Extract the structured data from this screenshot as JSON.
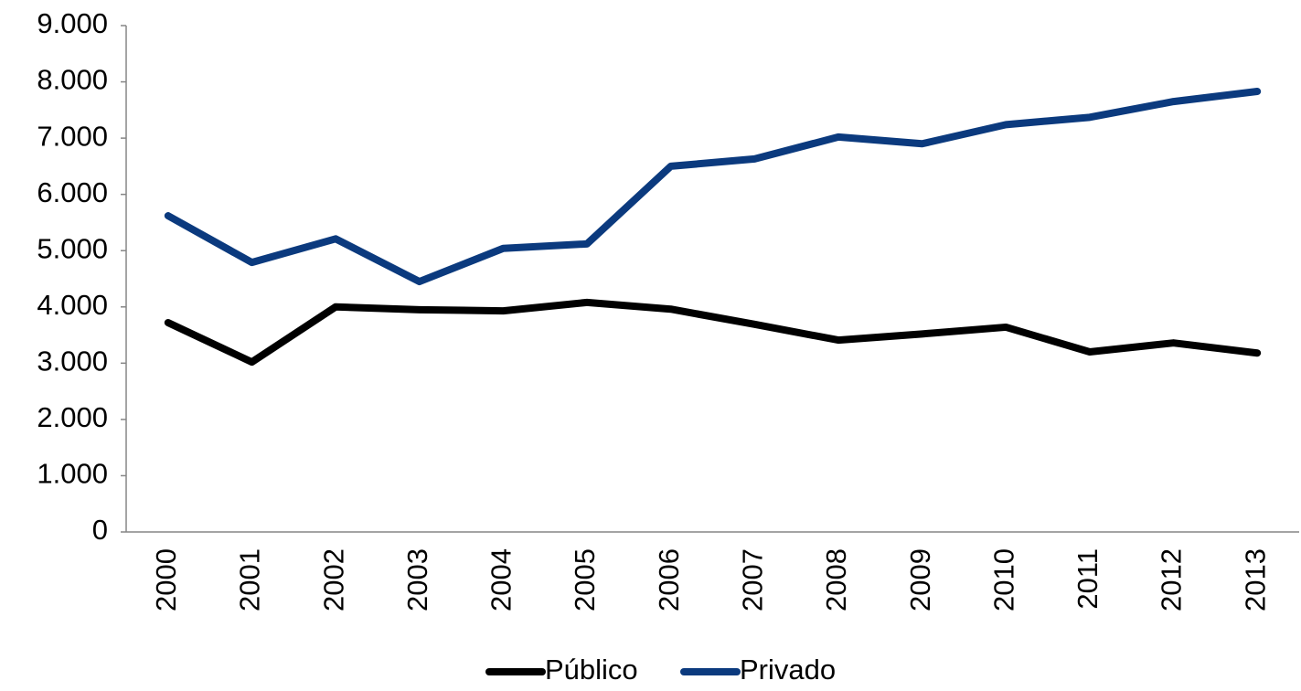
{
  "chart_data": {
    "type": "line",
    "categories": [
      "2000",
      "2001",
      "2002",
      "2003",
      "2004",
      "2005",
      "2006",
      "2007",
      "2008",
      "2009",
      "2010",
      "2011",
      "2012",
      "2013"
    ],
    "series": [
      {
        "name": "Público",
        "color": "#000000",
        "values": [
          3720,
          3020,
          4000,
          3950,
          3930,
          4080,
          3960,
          3690,
          3410,
          3520,
          3640,
          3200,
          3360,
          3180
        ]
      },
      {
        "name": "Privado",
        "color": "#0b3a7e",
        "values": [
          5620,
          4790,
          5210,
          4450,
          5040,
          5120,
          6500,
          6630,
          7020,
          6900,
          7240,
          7370,
          7650,
          7830
        ]
      }
    ],
    "ylim": [
      0,
      9000
    ],
    "yticks": [
      0,
      {
        "value": 1000,
        "label": "1.000"
      },
      {
        "value": 2000,
        "label": "2.000"
      },
      {
        "value": 3000,
        "label": "3.000"
      },
      {
        "value": 4000,
        "label": "4.000"
      },
      {
        "value": 5000,
        "label": "5.000"
      },
      {
        "value": 6000,
        "label": "6.000"
      },
      {
        "value": 7000,
        "label": "7.000"
      },
      {
        "value": 8000,
        "label": "8.000"
      },
      {
        "value": 9000,
        "label": "9.000"
      }
    ],
    "grid": false,
    "legend": "bottom"
  }
}
